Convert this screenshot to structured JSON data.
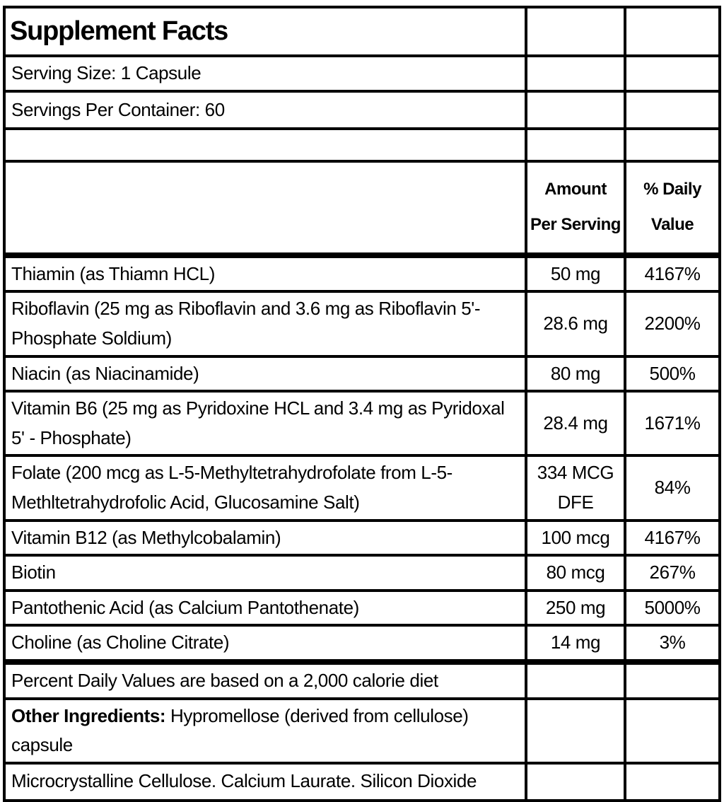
{
  "header": {
    "title": "Supplement Facts",
    "serving_size": "Serving Size: 1 Capsule",
    "servings_per_container": "Servings Per Container: 60",
    "amount_column": "Amount Per Serving",
    "daily_value_column": "% Daily Value"
  },
  "nutrients": [
    {
      "name": "Thiamin (as Thiamn HCL)",
      "amount": "50 mg",
      "daily_value": "4167%"
    },
    {
      "name": "Riboflavin (25 mg as Riboflavin and 3.6 mg as Riboflavin 5'-Phosphate Soldium)",
      "amount": "28.6 mg",
      "daily_value": "2200%"
    },
    {
      "name": "Niacin (as Niacinamide)",
      "amount": "80 mg",
      "daily_value": "500%"
    },
    {
      "name": "Vitamin B6 (25 mg as Pyridoxine HCL and 3.4 mg as Pyridoxal 5' - Phosphate)",
      "amount": "28.4 mg",
      "daily_value": "1671%"
    },
    {
      "name": "Folate (200 mcg as L-5-Methyltetrahydrofolate from L-5-Methltetrahydrofolic Acid, Glucosamine Salt)",
      "amount": "334 MCG DFE",
      "daily_value": "84%"
    },
    {
      "name": "Vitamin B12 (as Methylcobalamin)",
      "amount": "100 mcg",
      "daily_value": "4167%"
    },
    {
      "name": "Biotin",
      "amount": "80 mcg",
      "daily_value": "267%"
    },
    {
      "name": "Pantothenic Acid (as Calcium Pantothenate)",
      "amount": "250 mg",
      "daily_value": "5000%"
    },
    {
      "name": "Choline (as Choline Citrate)",
      "amount": "14 mg",
      "daily_value": "3%"
    }
  ],
  "footer": {
    "daily_value_note": "Percent Daily Values are based on a 2,000 calorie diet",
    "other_ingredients_label": "Other Ingredients:",
    "other_ingredients_text": "Hypromellose (derived from cellulose) capsule",
    "additional_ingredients": "Microcrystalline Cellulose. Calcium Laurate. Silicon Dioxide"
  }
}
